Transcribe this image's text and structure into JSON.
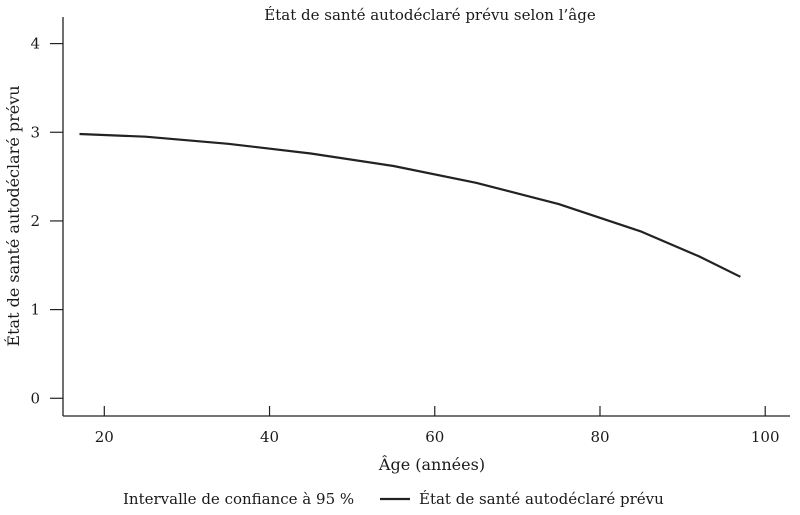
{
  "chart_data": {
    "type": "line",
    "title": "État de santé autodéclaré prévu selon l’âge",
    "xlabel": "Âge (années)",
    "ylabel": "État de santé autodéclaré prévu",
    "xlim": [
      15,
      103
    ],
    "ylim": [
      -0.2,
      4.3
    ],
    "xticks": [
      20,
      40,
      60,
      80,
      100
    ],
    "yticks": [
      0,
      1,
      2,
      3,
      4
    ],
    "xtick_labels": [
      "20",
      "40",
      "60",
      "80",
      "100"
    ],
    "ytick_labels": [
      "0",
      "1",
      "2",
      "3",
      "4"
    ],
    "grid": false,
    "legend_position": "bottom",
    "legend": {
      "ci_label": "Intervalle de confiance à 95 %",
      "line_label": "État de santé autodéclaré prévu"
    },
    "series": [
      {
        "name": "État de santé autodéclaré prévu",
        "color": "#222222",
        "x": [
          17,
          25,
          35,
          45,
          55,
          65,
          75,
          85,
          92,
          97
        ],
        "y": [
          2.98,
          2.95,
          2.87,
          2.76,
          2.62,
          2.43,
          2.19,
          1.88,
          1.6,
          1.37
        ]
      }
    ]
  }
}
